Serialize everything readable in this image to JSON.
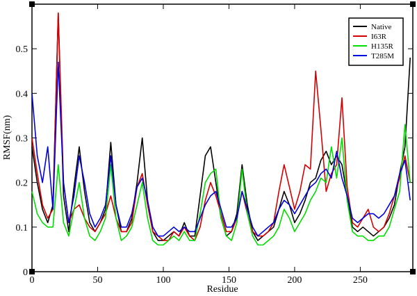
{
  "chart_data": {
    "type": "line",
    "title": "",
    "xlabel": "Residue",
    "ylabel": "RMSF(nm)",
    "xlim": [
      0,
      290
    ],
    "ylim": [
      0,
      0.6
    ],
    "x_ticks": [
      0,
      50,
      100,
      150,
      200,
      250
    ],
    "y_ticks": [
      0,
      0.1,
      0.2,
      0.3,
      0.4,
      0.5
    ],
    "x_tick_labels": [
      "0",
      "50",
      "100",
      "150",
      "200",
      "250"
    ],
    "y_tick_labels": [
      "0",
      "0.1",
      "0.2",
      "0.3",
      "0.4",
      "0.5"
    ],
    "grid": false,
    "legend_position": "top-right",
    "x": [
      0,
      4,
      8,
      12,
      16,
      20,
      24,
      28,
      32,
      36,
      40,
      44,
      48,
      52,
      56,
      60,
      64,
      68,
      72,
      76,
      80,
      84,
      88,
      92,
      96,
      100,
      104,
      108,
      112,
      116,
      120,
      124,
      128,
      132,
      136,
      140,
      144,
      148,
      152,
      156,
      160,
      164,
      168,
      172,
      176,
      180,
      184,
      188,
      192,
      196,
      200,
      204,
      208,
      212,
      216,
      220,
      224,
      228,
      232,
      236,
      240,
      244,
      248,
      252,
      256,
      260,
      264,
      268,
      272,
      276,
      280,
      284,
      288
    ],
    "series": [
      {
        "name": "Native",
        "color": "#000000",
        "values": [
          0.28,
          0.2,
          0.14,
          0.11,
          0.15,
          0.58,
          0.17,
          0.09,
          0.19,
          0.28,
          0.18,
          0.11,
          0.09,
          0.11,
          0.14,
          0.29,
          0.15,
          0.09,
          0.09,
          0.12,
          0.2,
          0.3,
          0.16,
          0.09,
          0.07,
          0.07,
          0.08,
          0.09,
          0.08,
          0.11,
          0.08,
          0.08,
          0.17,
          0.26,
          0.28,
          0.2,
          0.12,
          0.08,
          0.09,
          0.13,
          0.24,
          0.15,
          0.09,
          0.07,
          0.08,
          0.09,
          0.1,
          0.14,
          0.18,
          0.15,
          0.11,
          0.13,
          0.16,
          0.2,
          0.21,
          0.25,
          0.27,
          0.24,
          0.26,
          0.24,
          0.17,
          0.1,
          0.09,
          0.1,
          0.09,
          0.08,
          0.09,
          0.1,
          0.12,
          0.15,
          0.22,
          0.28,
          0.48
        ]
      },
      {
        "name": "I63R",
        "color": "#d40000",
        "values": [
          0.3,
          0.22,
          0.15,
          0.12,
          0.14,
          0.58,
          0.2,
          0.11,
          0.14,
          0.15,
          0.12,
          0.1,
          0.09,
          0.11,
          0.13,
          0.17,
          0.12,
          0.09,
          0.09,
          0.11,
          0.19,
          0.22,
          0.15,
          0.09,
          0.08,
          0.07,
          0.07,
          0.09,
          0.08,
          0.1,
          0.08,
          0.07,
          0.1,
          0.16,
          0.2,
          0.17,
          0.13,
          0.09,
          0.09,
          0.12,
          0.18,
          0.13,
          0.09,
          0.08,
          0.08,
          0.09,
          0.11,
          0.18,
          0.24,
          0.19,
          0.14,
          0.18,
          0.24,
          0.23,
          0.45,
          0.32,
          0.18,
          0.22,
          0.24,
          0.39,
          0.19,
          0.11,
          0.1,
          0.12,
          0.14,
          0.1,
          0.09,
          0.1,
          0.13,
          0.17,
          0.21,
          0.26,
          0.2
        ]
      },
      {
        "name": "H135R",
        "color": "#00dd00",
        "values": [
          0.18,
          0.13,
          0.11,
          0.1,
          0.1,
          0.24,
          0.11,
          0.08,
          0.14,
          0.2,
          0.12,
          0.08,
          0.07,
          0.09,
          0.12,
          0.24,
          0.12,
          0.07,
          0.08,
          0.1,
          0.15,
          0.2,
          0.12,
          0.07,
          0.06,
          0.06,
          0.07,
          0.08,
          0.07,
          0.09,
          0.07,
          0.07,
          0.13,
          0.2,
          0.22,
          0.23,
          0.12,
          0.08,
          0.07,
          0.11,
          0.23,
          0.13,
          0.08,
          0.06,
          0.06,
          0.07,
          0.08,
          0.1,
          0.14,
          0.12,
          0.09,
          0.11,
          0.13,
          0.16,
          0.18,
          0.21,
          0.2,
          0.28,
          0.21,
          0.3,
          0.16,
          0.09,
          0.08,
          0.08,
          0.07,
          0.07,
          0.08,
          0.08,
          0.1,
          0.14,
          0.18,
          0.33,
          0.2
        ]
      },
      {
        "name": "T285M",
        "color": "#0000dd",
        "values": [
          0.4,
          0.26,
          0.2,
          0.28,
          0.14,
          0.47,
          0.2,
          0.11,
          0.17,
          0.26,
          0.2,
          0.13,
          0.1,
          0.12,
          0.15,
          0.26,
          0.15,
          0.1,
          0.1,
          0.13,
          0.19,
          0.21,
          0.16,
          0.1,
          0.08,
          0.08,
          0.09,
          0.1,
          0.09,
          0.1,
          0.09,
          0.09,
          0.12,
          0.15,
          0.17,
          0.18,
          0.14,
          0.1,
          0.1,
          0.12,
          0.18,
          0.14,
          0.1,
          0.08,
          0.09,
          0.1,
          0.11,
          0.14,
          0.16,
          0.15,
          0.13,
          0.15,
          0.17,
          0.19,
          0.2,
          0.22,
          0.23,
          0.21,
          0.27,
          0.21,
          0.17,
          0.12,
          0.11,
          0.12,
          0.13,
          0.13,
          0.12,
          0.13,
          0.15,
          0.17,
          0.22,
          0.25,
          0.16
        ]
      }
    ]
  }
}
